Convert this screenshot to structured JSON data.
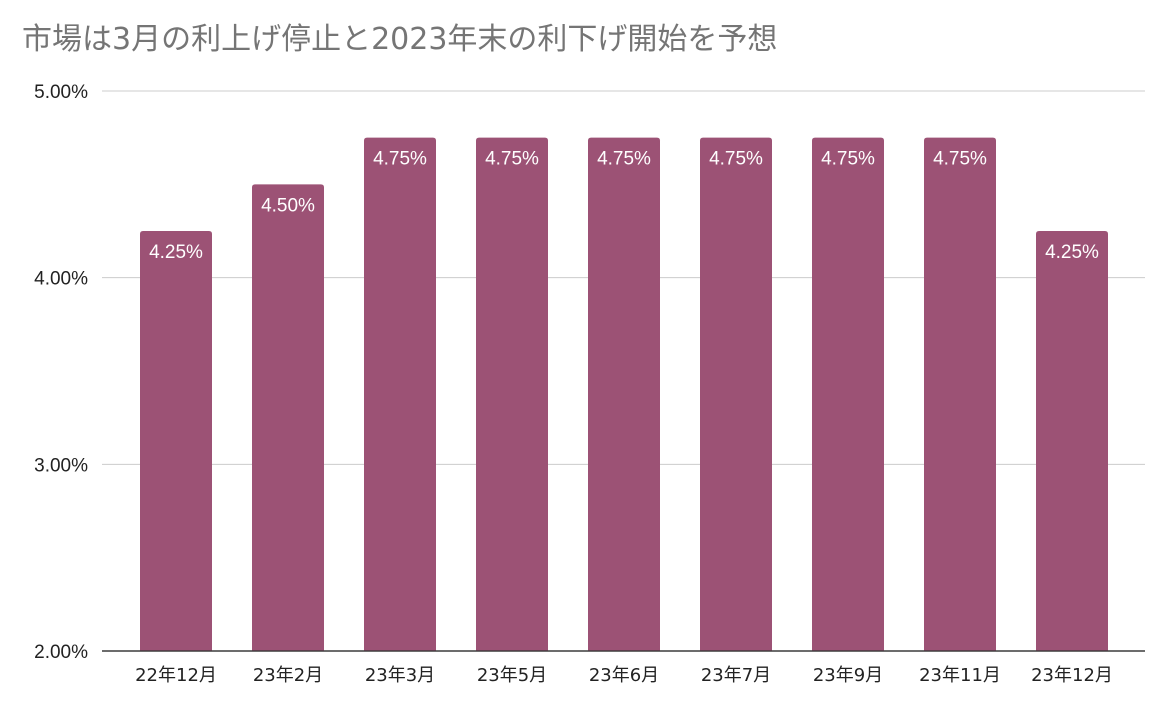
{
  "chart_data": {
    "type": "bar",
    "title": "市場は3月の利上げ停止と2023年末の利下げ開始を予想",
    "xlabel": "",
    "ylabel": "",
    "categories": [
      "22年12月",
      "23年2月",
      "23年3月",
      "23年5月",
      "23年6月",
      "23年7月",
      "23年9月",
      "23年11月",
      "23年12月"
    ],
    "values": [
      4.25,
      4.5,
      4.75,
      4.75,
      4.75,
      4.75,
      4.75,
      4.75,
      4.25
    ],
    "data_labels": [
      "4.25%",
      "4.50%",
      "4.75%",
      "4.75%",
      "4.75%",
      "4.75%",
      "4.75%",
      "4.75%",
      "4.25%"
    ],
    "ylim": [
      2.0,
      5.0
    ],
    "yticks": [
      2.0,
      3.0,
      4.0,
      5.0
    ],
    "ytick_labels": [
      "2.00%",
      "3.00%",
      "4.00%",
      "5.00%"
    ],
    "grid": true,
    "legend": "none",
    "bar_color": "#9c5275",
    "grid_color": "#cccccc"
  }
}
